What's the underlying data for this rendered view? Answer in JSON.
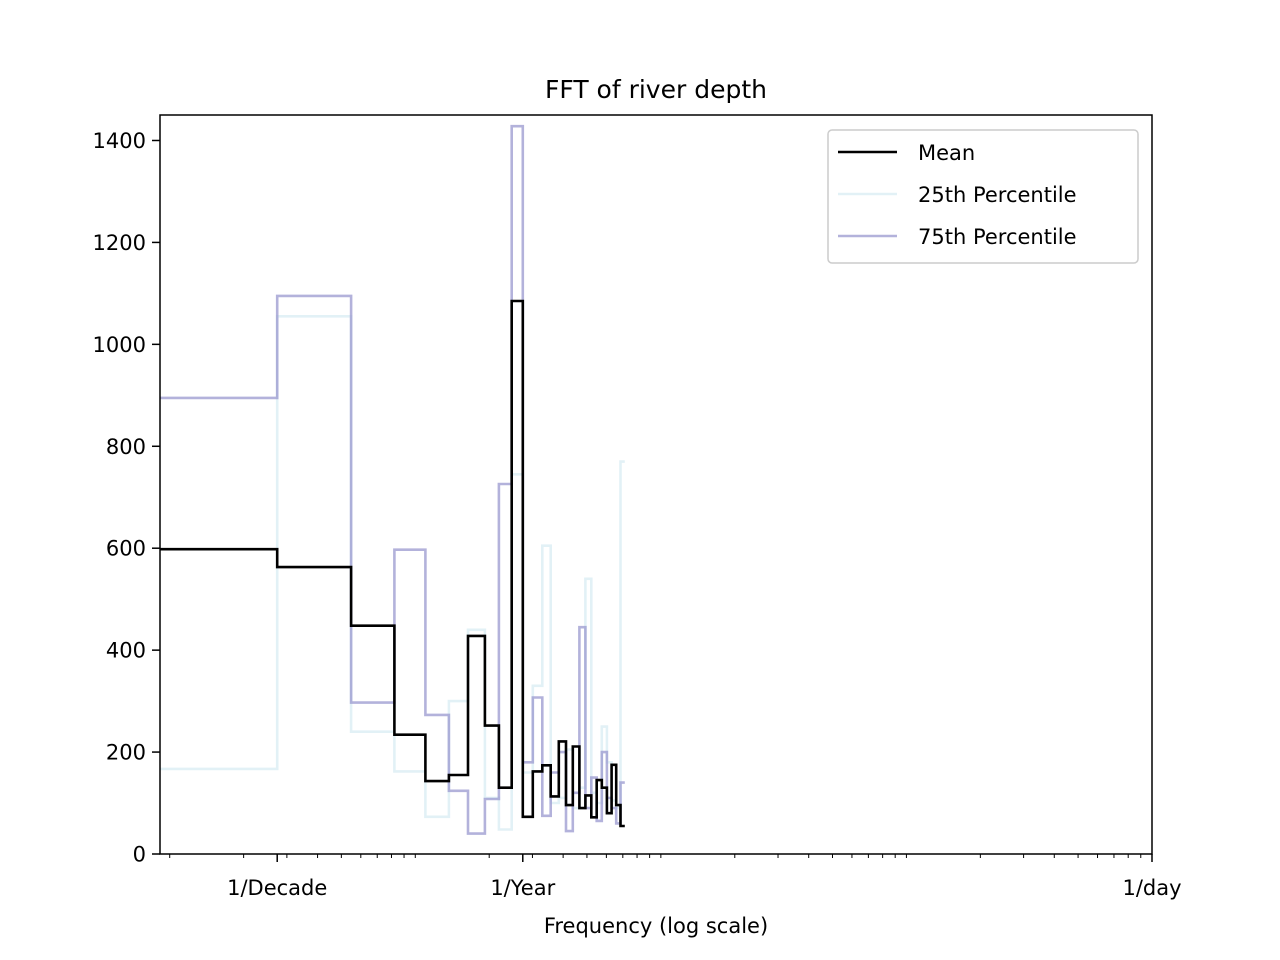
{
  "chart_data": {
    "type": "line",
    "title": "FFT of river depth",
    "xlabel": "Frequency (log scale)",
    "ylabel": "",
    "x_scale": "log",
    "x_unit": "cycles per day",
    "xlim": [
      9.13e-05,
      1.0
    ],
    "ylim": [
      0,
      1450
    ],
    "x_ticks": [
      {
        "value": 0.000274,
        "label": "1/Decade"
      },
      {
        "value": 0.00274,
        "label": "1/Year"
      },
      {
        "value": 1.0,
        "label": "1/day"
      }
    ],
    "y_ticks": [
      0,
      200,
      400,
      600,
      800,
      1000,
      1200,
      1400
    ],
    "legend": {
      "position": "top-right",
      "entries": [
        "Mean",
        "25th Percentile",
        "75th Percentile"
      ]
    },
    "grid": false,
    "series": [
      {
        "name": "Mean",
        "color": "#000000",
        "x": [
          9.13e-05,
          0.000274,
          0.000548,
          0.000822,
          0.0011,
          0.00137,
          0.00164,
          0.00192,
          0.00219,
          0.00247,
          0.00274,
          0.00301,
          0.00329,
          0.00356,
          0.00384,
          0.00411,
          0.00438,
          0.00466,
          0.00493,
          0.00521,
          0.00548,
          0.00575,
          0.00603,
          0.0063,
          0.00658,
          0.00685
        ],
        "y": [
          598,
          563,
          448,
          234,
          143,
          155,
          428,
          252,
          130,
          1085,
          73,
          162,
          174,
          113,
          221,
          96,
          211,
          90,
          115,
          72,
          145,
          130,
          80,
          175,
          96,
          55
        ]
      },
      {
        "name": "25th Percentile",
        "color": "#add8e6",
        "x": [
          9.13e-05,
          0.000274,
          0.000548,
          0.000822,
          0.0011,
          0.00137,
          0.00164,
          0.00192,
          0.00219,
          0.00247,
          0.00274,
          0.00301,
          0.00329,
          0.00356,
          0.00384,
          0.00411,
          0.00438,
          0.00466,
          0.00493,
          0.00521,
          0.00548,
          0.00575,
          0.00603,
          0.0063,
          0.00658,
          0.00685
        ],
        "y": [
          167,
          1055,
          240,
          162,
          73,
          300,
          440,
          110,
          48,
          745,
          160,
          330,
          605,
          100,
          110,
          205,
          90,
          130,
          540,
          120,
          100,
          250,
          180,
          105,
          90,
          770
        ]
      },
      {
        "name": "75th Percentile",
        "color": "#9a98cf",
        "x": [
          9.13e-05,
          0.000274,
          0.000548,
          0.000822,
          0.0011,
          0.00137,
          0.00164,
          0.00192,
          0.00219,
          0.00247,
          0.00274,
          0.00301,
          0.00329,
          0.00356,
          0.00384,
          0.00411,
          0.00438,
          0.00466,
          0.00493,
          0.00521,
          0.00548,
          0.00575,
          0.00603,
          0.0063,
          0.00658,
          0.00685
        ],
        "y": [
          895,
          1095,
          297,
          597,
          273,
          124,
          40,
          108,
          726,
          1428,
          180,
          307,
          75,
          160,
          200,
          45,
          120,
          445,
          90,
          150,
          65,
          200,
          110,
          90,
          60,
          140
        ]
      }
    ]
  }
}
